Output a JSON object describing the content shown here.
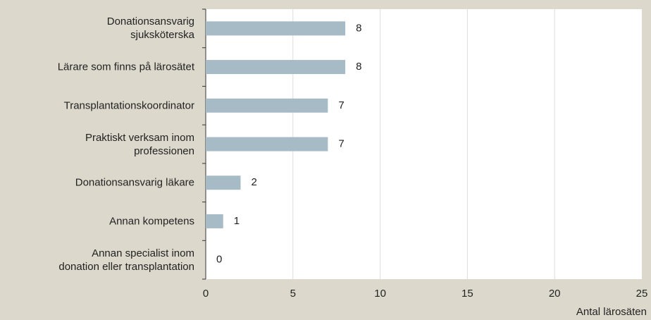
{
  "chart_data": {
    "type": "bar",
    "orientation": "horizontal",
    "categories": [
      "Donationsansvarig\nsjuksköterska",
      "Lärare som finns på lärosätet",
      "Transplantationskoordinator",
      "Praktiskt verksam inom\nprofessionen",
      "Donationsansvarig läkare",
      "Annan kompetens",
      "Annan specialist inom\ndonation eller transplantation"
    ],
    "values": [
      8,
      8,
      7,
      7,
      2,
      1,
      0
    ],
    "color": "#a7bbc6",
    "xlim": [
      0,
      25
    ],
    "xticks": [
      0,
      5,
      10,
      15,
      20,
      25
    ],
    "x_label": "Antal lärosäten",
    "grid": true
  }
}
